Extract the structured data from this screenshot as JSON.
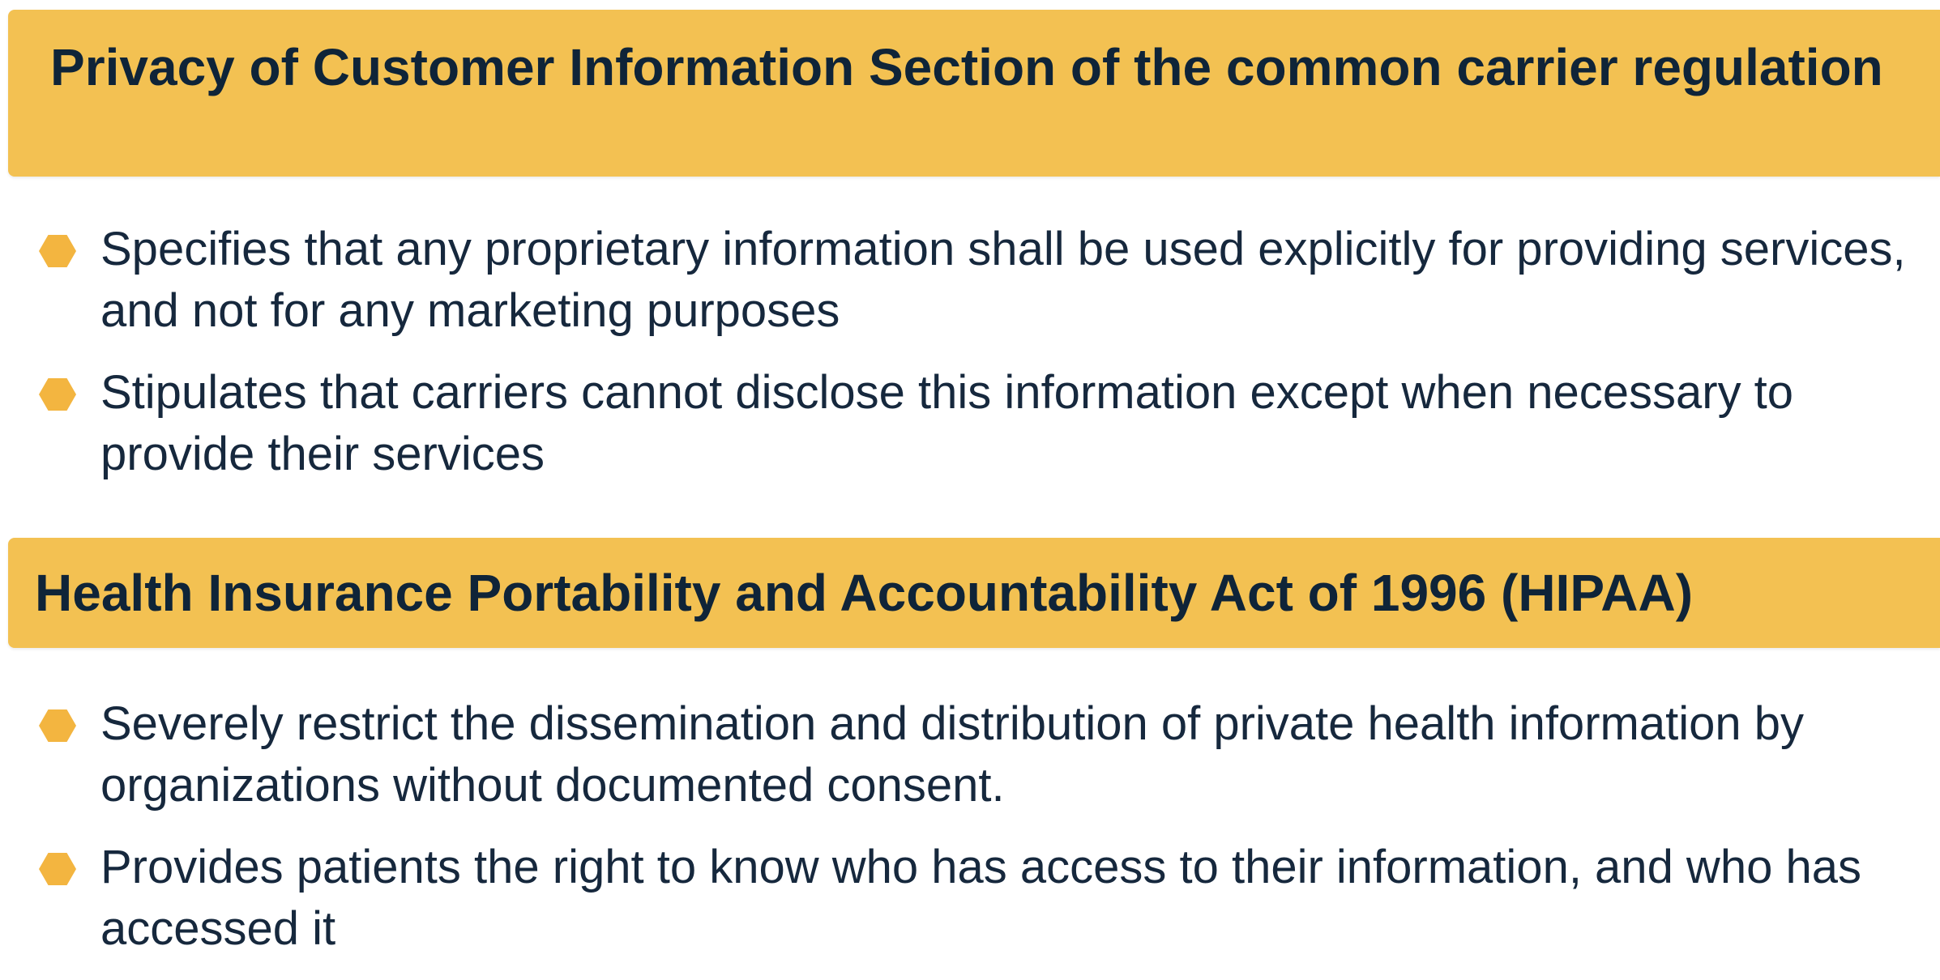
{
  "sections": [
    {
      "heading": "Privacy of Customer Information Section of the common carrier regulation",
      "bullets": [
        "Specifies that any proprietary information shall be used explicitly for providing services, and not for any marketing purposes",
        "Stipulates that carriers cannot disclose this information except when necessary to provide their services"
      ]
    },
    {
      "heading": "Health Insurance Portability and Accountability Act of 1996 (HIPAA)",
      "bullets": [
        "Severely restrict the dissemination and distribution of private health information by organizations without documented consent.",
        "Provides patients the right to know who has access to their information, and who has accessed it"
      ]
    }
  ],
  "colors": {
    "banner": "#f3c152",
    "heading_text": "#0f2438",
    "body_text": "#16283d",
    "bullet_marker": "#f3b540"
  },
  "icons": {
    "bullet": "hexagon-bullet-icon"
  }
}
